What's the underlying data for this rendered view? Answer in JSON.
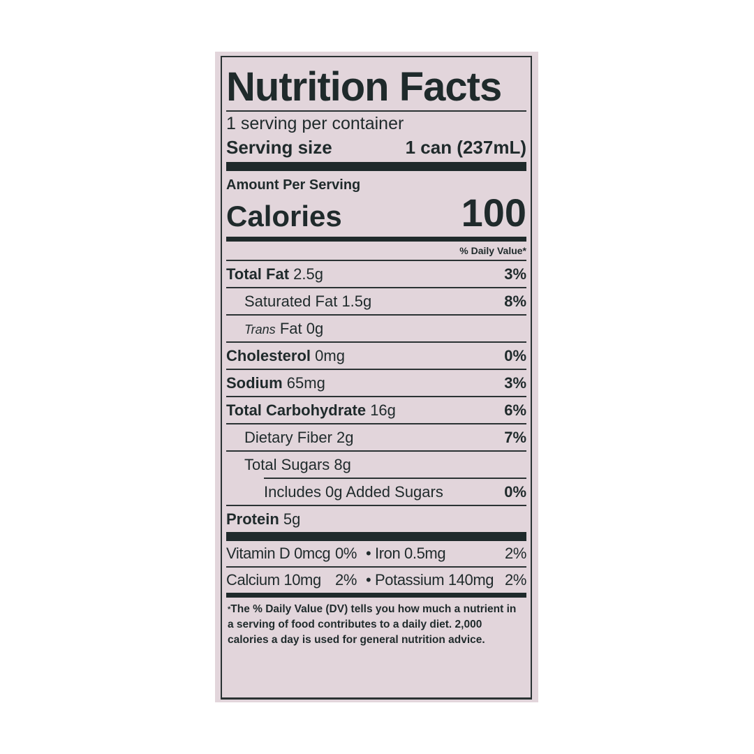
{
  "title": "Nutrition Facts",
  "servings_per_container": "1 serving per container",
  "serving_size": {
    "label": "Serving size",
    "value": "1 can (237mL)"
  },
  "amount_per_serving": "Amount Per Serving",
  "calories": {
    "label": "Calories",
    "value": "100"
  },
  "daily_value_header": "% Daily Value*",
  "nutrients": [
    {
      "name": "Total Fat",
      "amount": "2.5g",
      "dv": "3%"
    },
    {
      "name": "Saturated Fat",
      "amount": "1.5g",
      "dv": "8%"
    },
    {
      "name_italic": "Trans",
      "name": "Fat",
      "amount": "0g",
      "dv": ""
    },
    {
      "name": "Cholesterol",
      "amount": "0mg",
      "dv": "0%"
    },
    {
      "name": "Sodium",
      "amount": "65mg",
      "dv": "3%"
    },
    {
      "name": "Total Carbohydrate",
      "amount": "16g",
      "dv": "6%"
    },
    {
      "name": "Dietary Fiber",
      "amount": "2g",
      "dv": "7%"
    },
    {
      "name": "Total Sugars",
      "amount": "8g",
      "dv": ""
    },
    {
      "name": "Includes 0g Added Sugars",
      "amount": "",
      "dv": "0%"
    },
    {
      "name": "Protein",
      "amount": "5g",
      "dv": ""
    }
  ],
  "vitamins": [
    {
      "a": "Vitamin D 0mcg",
      "a_dv": "0%",
      "b": "• Iron 0.5mg",
      "b_dv": "2%"
    },
    {
      "a": "Calcium 10mg",
      "a_dv": "2%",
      "b": "• Potassium 140mg",
      "b_dv": "2%"
    }
  ],
  "footnote": {
    "marker": "*",
    "text": "The % Daily Value (DV) tells you how much a nutrient in a serving of food contributes to a daily diet. 2,000 calories a day is used for general nutrition advice."
  },
  "colors": {
    "label_background": "#e2d5db",
    "ink": "#1f2a2b"
  }
}
